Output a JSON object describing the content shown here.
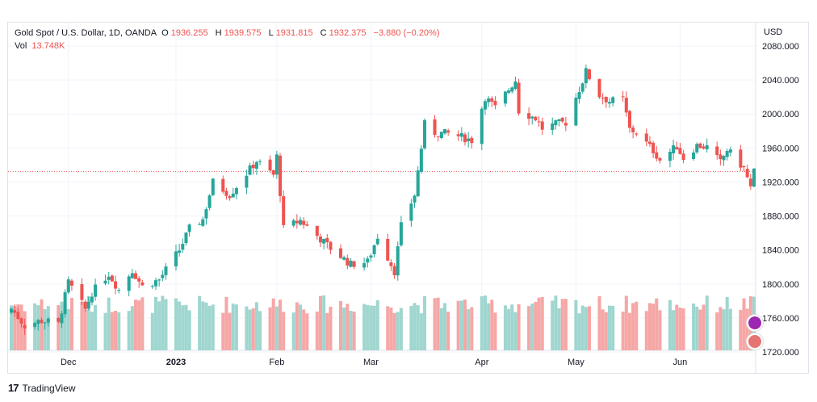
{
  "legend": {
    "symbol": "Gold Spot / U.S. Dollar, 1D, OANDA",
    "open_label": "O",
    "open": "1936.255",
    "high_label": "H",
    "high": "1939.575",
    "low_label": "L",
    "low": "1931.815",
    "close_label": "C",
    "close": "1932.375",
    "change": "−3.880 (−0.20%)",
    "vol_label": "Vol",
    "vol": "13.748K"
  },
  "axis": {
    "currency": "USD"
  },
  "brand": {
    "name": "TradingView"
  },
  "colors": {
    "up": "#26a69a",
    "down": "#ef5350",
    "up_vol": "#9fd6cf",
    "down_vol": "#f5a7a6",
    "grid": "#f0f3fa",
    "price_line": "#ef5350"
  },
  "chart_data": {
    "type": "candlestick",
    "symbol": "Gold Spot / U.S. Dollar",
    "timeframe": "1D",
    "y_ticks": [
      1720,
      1760,
      1800,
      1840,
      1880,
      1920,
      1960,
      2000,
      2040,
      2080
    ],
    "y_tick_labels": [
      "1720.000",
      "1760.000",
      "1800.000",
      "1840.000",
      "1880.000",
      "1920.000",
      "1960.000",
      "2000.000",
      "2040.000",
      "2080.000"
    ],
    "x_tick_labels": [
      "Dec",
      "2023",
      "Feb",
      "Mar",
      "Apr",
      "May",
      "Jun"
    ],
    "x_tick_dates": [
      "2022-12-01",
      "2023-01-02",
      "2023-02-01",
      "2023-03-01",
      "2023-04-03",
      "2023-05-01",
      "2023-06-01"
    ],
    "first_date": "2022-11-14",
    "last_date": "2023-06-23",
    "current_price": 1932.375,
    "close_anchors": [
      [
        "2022-11-14",
        1771
      ],
      [
        "2022-11-18",
        1751
      ],
      [
        "2022-11-23",
        1757
      ],
      [
        "2022-11-28",
        1753
      ],
      [
        "2022-12-01",
        1802
      ],
      [
        "2022-12-06",
        1770
      ],
      [
        "2022-12-08",
        1790
      ],
      [
        "2022-12-13",
        1812
      ],
      [
        "2022-12-16",
        1793
      ],
      [
        "2022-12-20",
        1816
      ],
      [
        "2022-12-23",
        1797
      ],
      [
        "2022-12-28",
        1805
      ],
      [
        "2023-01-03",
        1840
      ],
      [
        "2023-01-06",
        1865
      ],
      [
        "2023-01-10",
        1876
      ],
      [
        "2023-01-13",
        1920
      ],
      [
        "2023-01-18",
        1905
      ],
      [
        "2023-01-23",
        1930
      ],
      [
        "2023-01-26",
        1945
      ],
      [
        "2023-01-31",
        1928
      ],
      [
        "2023-02-01",
        1950
      ],
      [
        "2023-02-03",
        1865
      ],
      [
        "2023-02-08",
        1875
      ],
      [
        "2023-02-14",
        1853
      ],
      [
        "2023-02-17",
        1842
      ],
      [
        "2023-02-23",
        1823
      ],
      [
        "2023-02-28",
        1826
      ],
      [
        "2023-03-03",
        1856
      ],
      [
        "2023-03-08",
        1815
      ],
      [
        "2023-03-10",
        1868
      ],
      [
        "2023-03-14",
        1905
      ],
      [
        "2023-03-17",
        1988
      ],
      [
        "2023-03-20",
        1978
      ],
      [
        "2023-03-24",
        1977
      ],
      [
        "2023-03-28",
        1973
      ],
      [
        "2023-03-31",
        1969
      ],
      [
        "2023-04-04",
        2020
      ],
      [
        "2023-04-07",
        2007
      ],
      [
        "2023-04-13",
        2040
      ],
      [
        "2023-04-14",
        2004
      ],
      [
        "2023-04-19",
        1995
      ],
      [
        "2023-04-21",
        1983
      ],
      [
        "2023-04-26",
        1989
      ],
      [
        "2023-04-28",
        1990
      ],
      [
        "2023-05-03",
        2039
      ],
      [
        "2023-05-04",
        2050
      ],
      [
        "2023-05-08",
        2022
      ],
      [
        "2023-05-11",
        2015
      ],
      [
        "2023-05-15",
        2017
      ],
      [
        "2023-05-17",
        1982
      ],
      [
        "2023-05-19",
        1978
      ],
      [
        "2023-05-24",
        1957
      ],
      [
        "2023-05-26",
        1946
      ],
      [
        "2023-05-31",
        1962
      ],
      [
        "2023-06-02",
        1948
      ],
      [
        "2023-06-06",
        1963
      ],
      [
        "2023-06-09",
        1961
      ],
      [
        "2023-06-13",
        1943
      ],
      [
        "2023-06-15",
        1958
      ],
      [
        "2023-06-20",
        1936
      ],
      [
        "2023-06-22",
        1913
      ],
      [
        "2023-06-23",
        1932
      ]
    ],
    "volume_panel": {
      "label": "Vol",
      "last": "13.748K"
    },
    "grid": true
  }
}
